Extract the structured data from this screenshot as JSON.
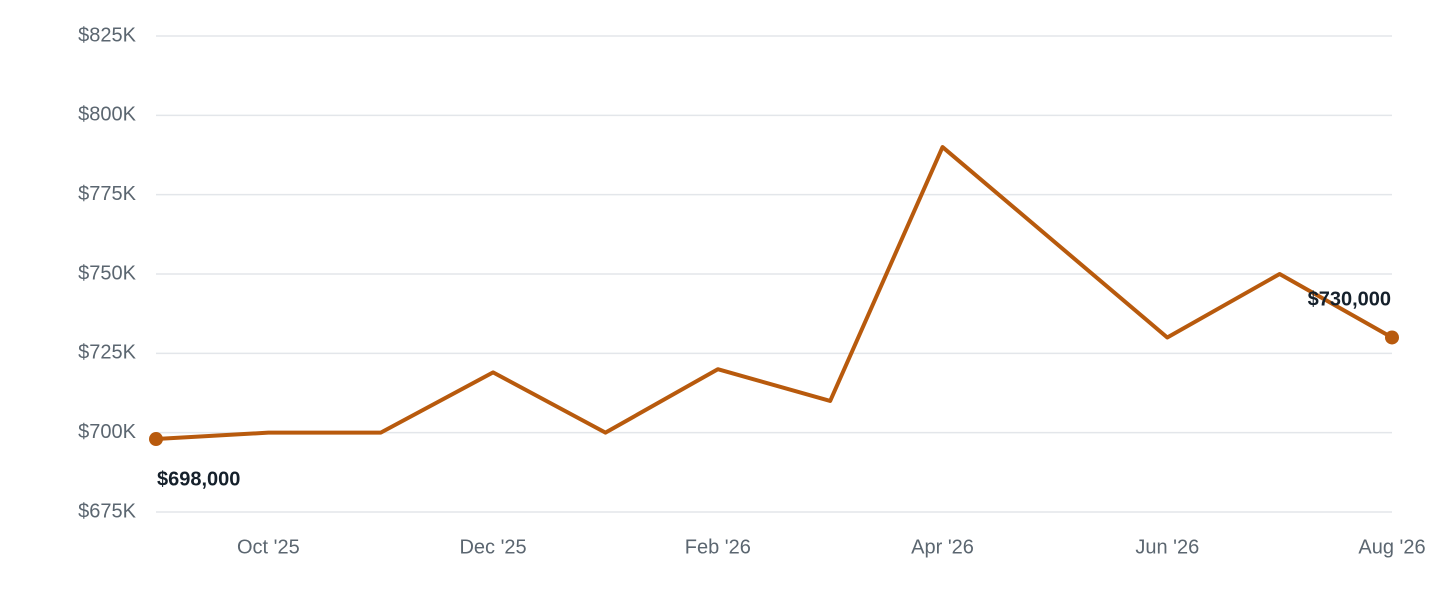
{
  "chart_data": {
    "type": "line",
    "categories": [
      null,
      "Oct '25",
      null,
      "Dec '25",
      null,
      "Feb '26",
      null,
      "Apr '26",
      null,
      "Jun '26",
      null,
      "Aug '26"
    ],
    "series": [
      {
        "name": null,
        "color": "#b85a0d",
        "values": [
          698000,
          700000,
          700000,
          719000,
          700000,
          720000,
          710000,
          790000,
          760000,
          730000,
          750000,
          730000
        ],
        "value_labels": [
          "$698,000",
          null,
          null,
          null,
          null,
          null,
          null,
          null,
          null,
          null,
          null,
          "$730,000"
        ]
      }
    ],
    "ylim": [
      675000,
      825000
    ],
    "yticks": [
      {
        "value": 675000,
        "label": "$675K"
      },
      {
        "value": 700000,
        "label": "$700K"
      },
      {
        "value": 725000,
        "label": "$725K"
      },
      {
        "value": 750000,
        "label": "$750K"
      },
      {
        "value": 775000,
        "label": "$775K"
      },
      {
        "value": 800000,
        "label": "$800K"
      },
      {
        "value": 825000,
        "label": "$825K"
      }
    ],
    "grid": true
  }
}
